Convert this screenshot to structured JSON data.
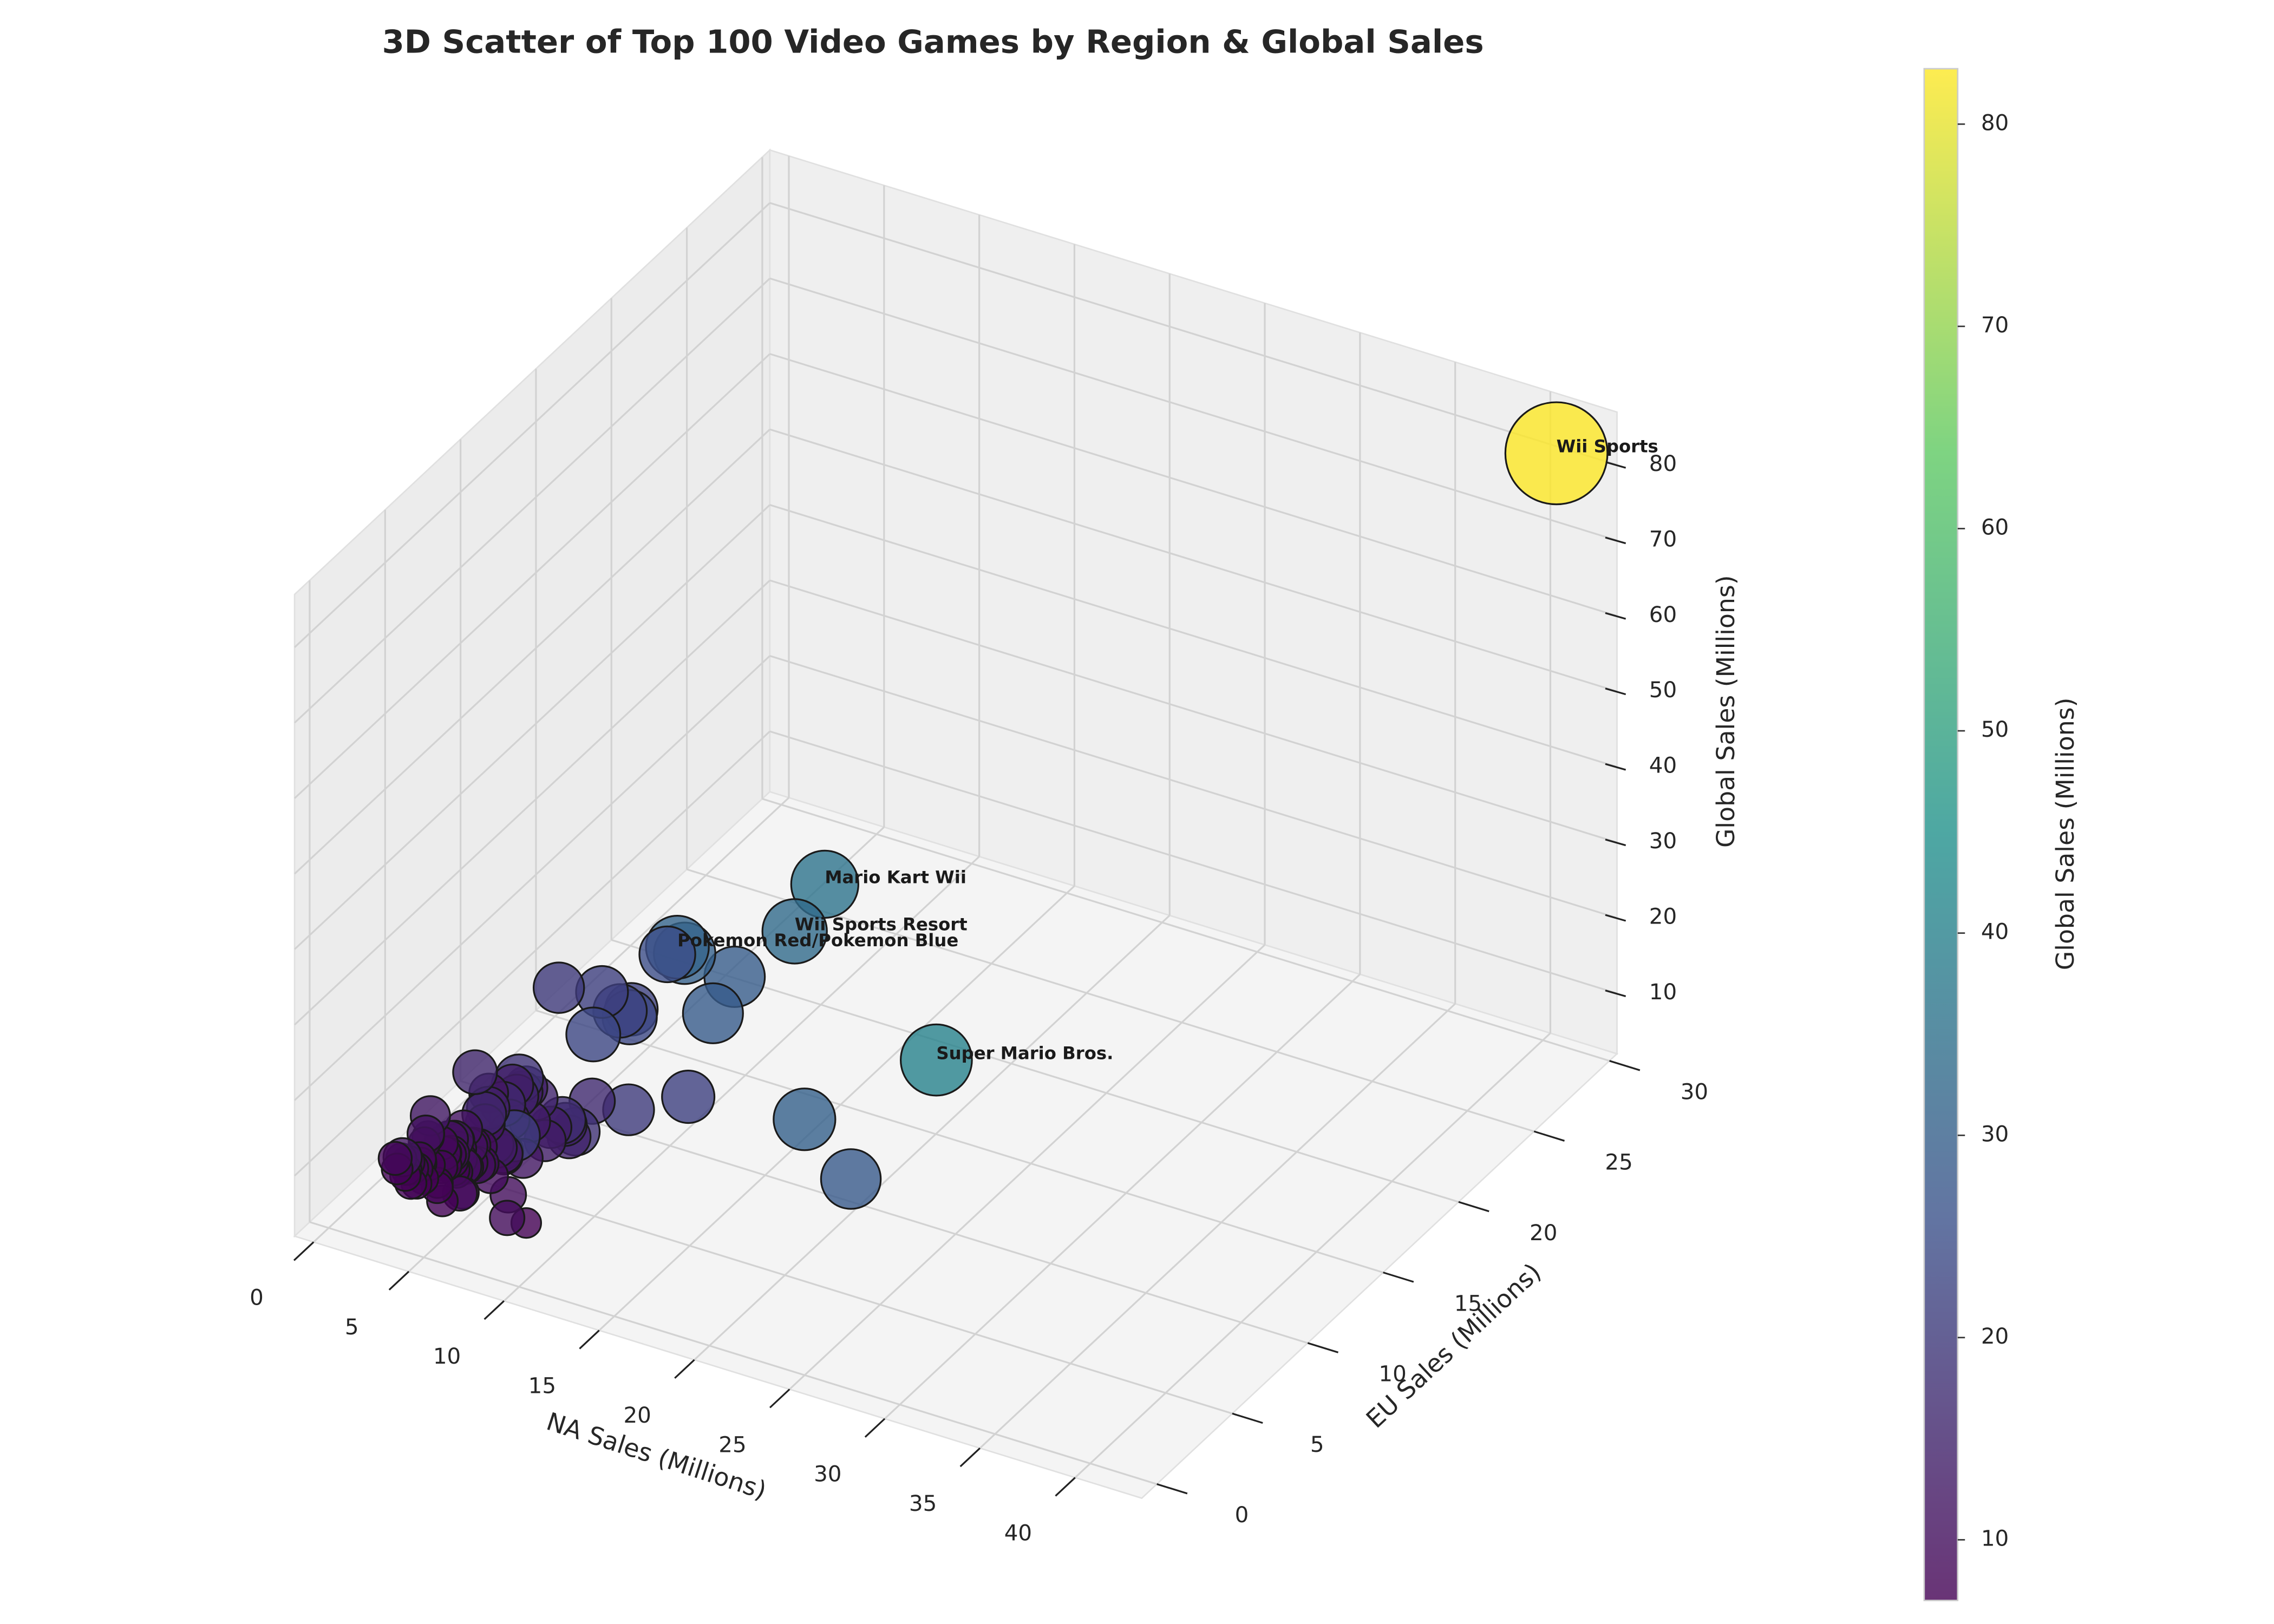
{
  "chart_data": {
    "type": "scatter3d",
    "title": "3D Scatter of Top 100 Video Games by Region & Global Sales",
    "xlabel": "NA Sales (Millions)",
    "ylabel": "EU Sales (Millions)",
    "zlabel": "Global Sales (Millions)",
    "xlim": [
      -1,
      43.5
    ],
    "ylim": [
      -1,
      30.5
    ],
    "zlim": [
      2,
      87
    ],
    "xticks": [
      0,
      5,
      10,
      15,
      20,
      25,
      30,
      35,
      40
    ],
    "yticks": [
      0,
      5,
      10,
      15,
      20,
      25,
      30
    ],
    "zticks": [
      10,
      20,
      30,
      40,
      50,
      60,
      70,
      80
    ],
    "grid": true,
    "colormap": [
      "#440154",
      "#3b528b",
      "#21918c",
      "#5ec962",
      "#fde725"
    ],
    "edgecolor": "#1a1a1a",
    "colorbar": {
      "label": "Global Sales (Millions)",
      "ticks": [
        10,
        20,
        30,
        40,
        50,
        60,
        70,
        80
      ]
    },
    "x": [
      41.49,
      29.08,
      15.85,
      15.75,
      11.27,
      23.2,
      11.38,
      14.03,
      14.59,
      26.93,
      9.07,
      9.81,
      9.0,
      8.94,
      9.09,
      14.97,
      7.01,
      9.43,
      12.78,
      4.75,
      6.42,
      10.83,
      9.54,
      9.63,
      6.06,
      5.57,
      3.44,
      6.85,
      9.03,
      5.89,
      9.67,
      5.17,
      5.77,
      4.99,
      8.25,
      8.52,
      5.54,
      6.99,
      6.75,
      5.98,
      2.55,
      5.03,
      7.97,
      3.8,
      4.4,
      6.91,
      3.01,
      6.06,
      6.76,
      4.02,
      5.91,
      4.34,
      8.25,
      5.8,
      4.7,
      4.99,
      6.05,
      9.0,
      5.17,
      4.12,
      3.95,
      3.66,
      4.52,
      3.08,
      2.84,
      3.54,
      5.02,
      1.82,
      2.45,
      3.93,
      4.1,
      2.78,
      5.78,
      4.63,
      3.4,
      2.91,
      4.38,
      2.08,
      1.95,
      3.2,
      4.4,
      2.72,
      3.78,
      1.98,
      5.1,
      2.11,
      3.36,
      2.52,
      4.08,
      1.61,
      2.99,
      3.24,
      2.26,
      6.63,
      6.31,
      9.18,
      4.89,
      2.63,
      3.76,
      5.4
    ],
    "y": [
      29.02,
      3.58,
      12.88,
      11.01,
      8.89,
      2.26,
      9.23,
      9.2,
      7.06,
      0.63,
      11.0,
      7.57,
      6.18,
      8.03,
      8.59,
      4.94,
      9.27,
      0.4,
      3.75,
      9.26,
      4.52,
      2.71,
      3.44,
      5.31,
      3.9,
      3.28,
      5.36,
      5.09,
      4.28,
      5.04,
      3.73,
      4.05,
      5.81,
      5.88,
      4.3,
      3.59,
      5.82,
      4.51,
      2.61,
      4.44,
      3.52,
      4.02,
      2.83,
      5.81,
      2.77,
      2.85,
      1.1,
      3.35,
      3.1,
      3.87,
      2.38,
      2.65,
      1.49,
      2.77,
      3.62,
      3.69,
      1.06,
      0.47,
      2.87,
      3.45,
      2.99,
      3.01,
      3.01,
      3.56,
      2.42,
      4.08,
      2.81,
      2.11,
      2.17,
      2.49,
      2.99,
      2.02,
      1.59,
      2.62,
      3.45,
      2.16,
      2.76,
      3.72,
      4.13,
      1.4,
      1.64,
      2.68,
      3.01,
      2.04,
      1.1,
      2.52,
      2.01,
      1.9,
      2.07,
      2.78,
      2.93,
      1.73,
      2.31,
      2.36,
      3.75,
      1.51,
      3.13,
      3.12,
      3.28,
      2.1
    ],
    "z": [
      82.74,
      40.24,
      35.82,
      33.0,
      31.37,
      30.26,
      30.01,
      29.02,
      28.62,
      28.31,
      24.76,
      23.42,
      23.1,
      22.72,
      22.0,
      21.82,
      21.4,
      20.81,
      20.61,
      20.22,
      18.36,
      18.14,
      17.28,
      16.38,
      15.85,
      15.32,
      15.3,
      14.98,
      14.76,
      14.64,
      14.64,
      14.35,
      14.24,
      13.79,
      13.73,
      13.51,
      13.46,
      13.1,
      13.04,
      12.73,
      12.27,
      12.21,
      12.14,
      11.98,
      11.9,
      11.89,
      11.66,
      11.52,
      11.02,
      11.01,
      10.5,
      10.26,
      10.04,
      9.9,
      9.87,
      9.76,
      9.3,
      9.47,
      9.32,
      9.24,
      9.2,
      9.14,
      9.03,
      8.98,
      8.84,
      8.77,
      8.72,
      8.69,
      8.57,
      8.49,
      8.42,
      8.31,
      8.22,
      8.15,
      8.09,
      8.06,
      7.98,
      7.92,
      7.86,
      7.81,
      7.72,
      7.69,
      7.6,
      7.55,
      7.5,
      7.45,
      7.4,
      7.34,
      7.3,
      7.27,
      7.2,
      7.16,
      7.12,
      9.68,
      10.12,
      7.0,
      10.77,
      10.69,
      10.57,
      10.45
    ],
    "point_labels": [
      "Wii Sports",
      "Super Mario Bros.",
      "Mario Kart Wii",
      "Wii Sports Resort",
      "Pokemon Red/Pokemon Blue",
      null,
      null,
      null,
      null,
      null,
      null,
      null,
      null,
      null,
      null,
      null,
      null,
      null,
      null,
      null,
      null,
      null,
      null,
      null,
      null,
      null,
      null,
      null,
      null,
      null,
      null,
      null,
      null,
      null,
      null,
      null,
      null,
      null,
      null,
      null,
      null,
      null,
      null,
      null,
      null,
      null,
      null,
      null,
      null,
      null,
      null,
      null,
      null,
      null,
      null,
      null,
      null,
      null,
      null,
      null,
      null,
      null,
      null,
      null,
      null,
      null,
      null,
      null,
      null,
      null,
      null,
      null,
      null,
      null,
      null,
      null,
      null,
      null,
      null,
      null,
      null,
      null,
      null,
      null,
      null,
      null,
      null,
      null,
      null,
      null,
      null,
      null,
      null,
      null,
      null,
      null,
      null,
      null,
      null,
      null
    ]
  }
}
